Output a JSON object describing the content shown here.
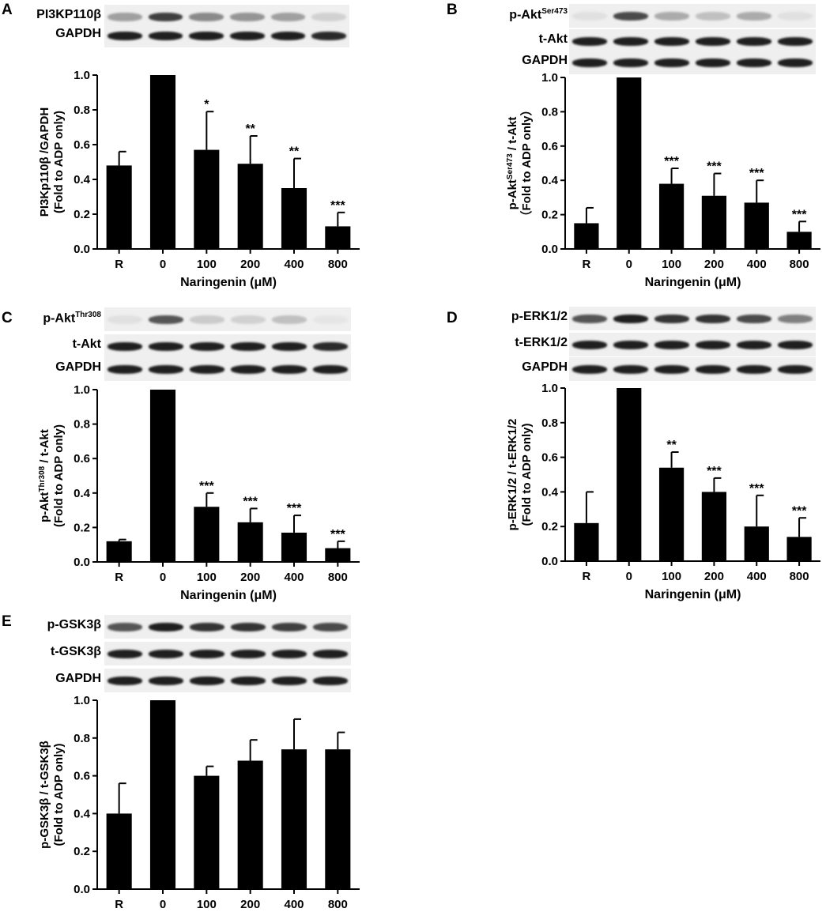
{
  "x_axis_label": "Naringenin (μM)",
  "panels": [
    {
      "letter": "A",
      "blots": [
        {
          "label": "PI3KP110β",
          "sup": "",
          "intensity": [
            0.35,
            0.8,
            0.45,
            0.4,
            0.35,
            0.12
          ]
        },
        {
          "label": "GAPDH",
          "sup": "",
          "intensity": [
            0.95,
            0.95,
            0.95,
            0.95,
            0.95,
            0.9
          ]
        }
      ],
      "chart_data": {
        "type": "bar",
        "categories": [
          "R",
          "0",
          "100",
          "200",
          "400",
          "800"
        ],
        "values": [
          0.48,
          1.0,
          0.57,
          0.49,
          0.35,
          0.13
        ],
        "errors": [
          0.08,
          0,
          0.22,
          0.16,
          0.17,
          0.08
        ],
        "significance": [
          "",
          "",
          "*",
          "**",
          "**",
          "***"
        ],
        "ylabel_line1": "PI3Kp110β /GAPDH",
        "ylabel_line1_sup": "",
        "ylabel_line1_rest": "",
        "ylabel_line2": "(Fold to ADP only)",
        "xlabel": "Naringenin (μM)",
        "ylim": [
          0,
          1.0
        ],
        "yticks": [
          "0.0",
          "0.2",
          "0.4",
          "0.6",
          "0.8",
          "1.0"
        ]
      }
    },
    {
      "letter": "B",
      "blots": [
        {
          "label": "p-Akt",
          "sup": "Ser473",
          "intensity": [
            0.05,
            0.75,
            0.3,
            0.2,
            0.3,
            0.05
          ]
        },
        {
          "label": "t-Akt",
          "sup": "",
          "intensity": [
            0.95,
            0.95,
            0.95,
            0.95,
            0.95,
            0.95
          ]
        },
        {
          "label": "GAPDH",
          "sup": "",
          "intensity": [
            0.95,
            0.95,
            0.95,
            0.95,
            0.95,
            0.95
          ]
        }
      ],
      "chart_data": {
        "type": "bar",
        "categories": [
          "R",
          "0",
          "100",
          "200",
          "400",
          "800"
        ],
        "values": [
          0.15,
          1.0,
          0.38,
          0.31,
          0.27,
          0.1
        ],
        "errors": [
          0.09,
          0,
          0.09,
          0.13,
          0.13,
          0.06
        ],
        "significance": [
          "",
          "",
          "***",
          "***",
          "***",
          "***"
        ],
        "ylabel_line1": "p-Akt",
        "ylabel_line1_sup": "Ser473",
        "ylabel_line1_rest": " / t-Akt",
        "ylabel_line2": "（Fold to ADP only）",
        "xlabel": "Naringenin (μM)",
        "ylim": [
          0,
          1.0
        ],
        "yticks": [
          "0.0",
          "0.2",
          "0.4",
          "0.6",
          "0.8",
          "1.0"
        ]
      }
    },
    {
      "letter": "C",
      "blots": [
        {
          "label": "p-Akt",
          "sup": "Thr308",
          "intensity": [
            0.05,
            0.7,
            0.15,
            0.12,
            0.2,
            0.03
          ]
        },
        {
          "label": "t-Akt",
          "sup": "",
          "intensity": [
            0.95,
            0.95,
            0.95,
            0.95,
            0.95,
            0.9
          ]
        },
        {
          "label": "GAPDH",
          "sup": "",
          "intensity": [
            0.95,
            0.95,
            0.95,
            0.95,
            0.95,
            0.95
          ]
        }
      ],
      "chart_data": {
        "type": "bar",
        "categories": [
          "R",
          "0",
          "100",
          "200",
          "400",
          "800"
        ],
        "values": [
          0.12,
          1.0,
          0.32,
          0.23,
          0.17,
          0.08
        ],
        "errors": [
          0.01,
          0,
          0.08,
          0.08,
          0.1,
          0.04
        ],
        "significance": [
          "",
          "",
          "***",
          "***",
          "***",
          "***"
        ],
        "ylabel_line1": "p-Akt",
        "ylabel_line1_sup": "Thr308",
        "ylabel_line1_rest": " / t-Akt",
        "ylabel_line2": "(Fold to ADP only)",
        "xlabel": "Naringenin (μM)",
        "ylim": [
          0,
          1.0
        ],
        "yticks": [
          "0.0",
          "0.2",
          "0.4",
          "0.6",
          "0.8",
          "1.0"
        ]
      }
    },
    {
      "letter": "D",
      "blots": [
        {
          "label": "p-ERK1/2",
          "sup": "",
          "intensity": [
            0.7,
            0.95,
            0.85,
            0.85,
            0.75,
            0.5
          ]
        },
        {
          "label": "t-ERK1/2",
          "sup": "",
          "intensity": [
            0.95,
            0.95,
            0.95,
            0.95,
            0.95,
            0.95
          ]
        },
        {
          "label": "GAPDH",
          "sup": "",
          "intensity": [
            0.95,
            0.95,
            0.95,
            0.95,
            0.95,
            0.95
          ]
        }
      ],
      "chart_data": {
        "type": "bar",
        "categories": [
          "R",
          "0",
          "100",
          "200",
          "400",
          "800"
        ],
        "values": [
          0.22,
          1.0,
          0.54,
          0.4,
          0.2,
          0.14
        ],
        "errors": [
          0.18,
          0,
          0.09,
          0.08,
          0.18,
          0.11
        ],
        "significance": [
          "",
          "",
          "**",
          "***",
          "***",
          "***"
        ],
        "ylabel_line1": "p-ERK1/2 / t-ERK1/2",
        "ylabel_line1_sup": "",
        "ylabel_line1_rest": "",
        "ylabel_line2": "(Fold to ADP only)",
        "xlabel": "Naringenin (μM)",
        "ylim": [
          0,
          1.0
        ],
        "yticks": [
          "0.0",
          "0.2",
          "0.4",
          "0.6",
          "0.8",
          "1.0"
        ]
      }
    },
    {
      "letter": "E",
      "blots": [
        {
          "label": "p-GSK3β",
          "sup": "",
          "intensity": [
            0.7,
            0.95,
            0.85,
            0.85,
            0.8,
            0.75
          ]
        },
        {
          "label": "t-GSK3β",
          "sup": "",
          "intensity": [
            0.95,
            0.95,
            0.95,
            0.95,
            0.95,
            0.95
          ]
        },
        {
          "label": "GAPDH",
          "sup": "",
          "intensity": [
            0.95,
            0.95,
            0.95,
            0.95,
            0.95,
            0.95
          ]
        }
      ],
      "chart_data": {
        "type": "bar",
        "categories": [
          "R",
          "0",
          "100",
          "200",
          "400",
          "800"
        ],
        "values": [
          0.4,
          1.0,
          0.6,
          0.68,
          0.74,
          0.74
        ],
        "errors": [
          0.16,
          0,
          0.05,
          0.11,
          0.16,
          0.09
        ],
        "significance": [
          "",
          "",
          "",
          "",
          "",
          ""
        ],
        "ylabel_line1": "p-GSK3β / t-GSK3β",
        "ylabel_line1_sup": "",
        "ylabel_line1_rest": "",
        "ylabel_line2": "(Fold to ADP only)",
        "xlabel": "Naringenin (μM)",
        "ylim": [
          0,
          1.0
        ],
        "yticks": [
          "0.0",
          "0.2",
          "0.4",
          "0.6",
          "0.8",
          "1.0"
        ]
      }
    }
  ]
}
